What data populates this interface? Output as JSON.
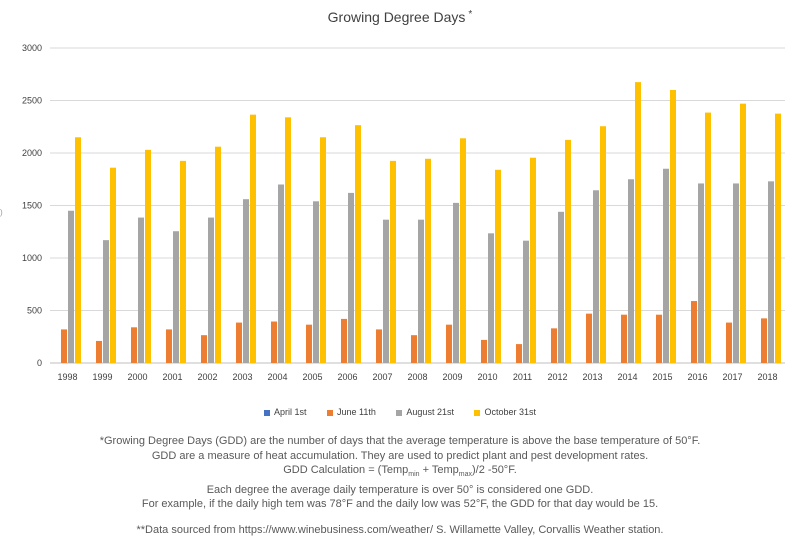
{
  "chart_data": {
    "type": "bar",
    "title": "Growing Degree Days",
    "title_mark": "*",
    "xlabel": "",
    "ylabel": "",
    "ylim": [
      0,
      3000
    ],
    "yticks": [
      0,
      500,
      1000,
      1500,
      2000,
      2500,
      3000
    ],
    "grid": true,
    "legend_position": "bottom",
    "categories": [
      "1998",
      "1999",
      "2000",
      "2001",
      "2002",
      "2003",
      "2004",
      "2005",
      "2006",
      "2007",
      "2008",
      "2009",
      "2010",
      "2011",
      "2012",
      "2013",
      "2014",
      "2015",
      "2016",
      "2017",
      "2018"
    ],
    "series": [
      {
        "name": "April 1st",
        "color": "#4472C4",
        "values": [
          0,
          0,
          0,
          0,
          0,
          0,
          0,
          0,
          0,
          0,
          0,
          0,
          0,
          0,
          0,
          0,
          0,
          0,
          0,
          0,
          0
        ]
      },
      {
        "name": "June 11th",
        "color": "#ED7D31",
        "values": [
          320,
          210,
          340,
          320,
          265,
          385,
          395,
          365,
          420,
          320,
          265,
          365,
          220,
          180,
          330,
          470,
          460,
          460,
          590,
          385,
          425
        ]
      },
      {
        "name": "August 21st",
        "color": "#A5A5A5",
        "values": [
          1450,
          1170,
          1385,
          1255,
          1385,
          1560,
          1700,
          1540,
          1620,
          1365,
          1365,
          1525,
          1235,
          1165,
          1440,
          1645,
          1750,
          1850,
          1710,
          1710,
          1730
        ]
      },
      {
        "name": "October 31st",
        "color": "#FFC000",
        "values": [
          2150,
          1860,
          2030,
          1925,
          2060,
          2365,
          2340,
          2150,
          2265,
          1925,
          1945,
          2140,
          1840,
          1955,
          2125,
          2255,
          2675,
          2600,
          2385,
          2470,
          2375
        ]
      }
    ]
  },
  "notes": {
    "line1": "*Growing Degree Days (GDD) are the number of days that the average temperature  is above the base temperature of 50°F.",
    "line2": "GDD are a measure of heat accumulation. They are used to predict plant and pest development rates.",
    "line3_a": "GDD Calculation = (Temp",
    "line3_sub1": "min",
    "line3_b": " + Temp",
    "line3_sub2": "max",
    "line3_c": ")/2 -50°F.",
    "line4": "Each degree the average daily temperature is over 50° is considered one GDD.",
    "line5": "For example, if the daily high tem was 78°F and the daily low was 52°F, the GDD for that day would be 15.",
    "source": "**Data sourced from https://www.winebusiness.com/weather/ S. Willamette Valley, Corvallis Weather station."
  },
  "colors": {
    "gridline": "#D9D9D9",
    "axis": "#BFBFBF"
  }
}
